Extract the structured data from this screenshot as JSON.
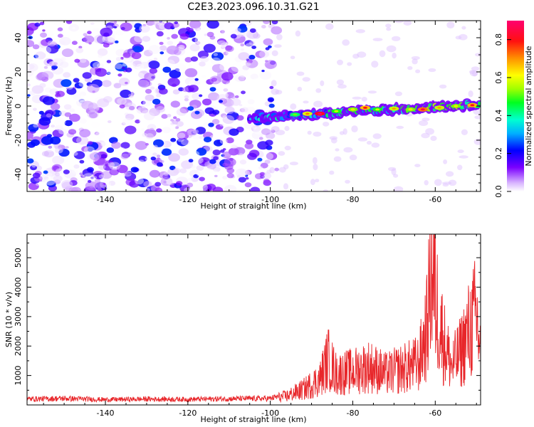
{
  "title": "C2E3.2023.096.10.31.G21",
  "chart_data": [
    {
      "type": "heatmap",
      "xlabel": "Height of straight line (km)",
      "ylabel": "Frequency (Hz)",
      "xlim": [
        -159,
        -49
      ],
      "ylim": [
        -50,
        50
      ],
      "xticks": [
        "-140",
        "-120",
        "-100",
        "-80",
        "-60"
      ],
      "yticks": [
        "-40",
        "-20",
        "0",
        "20",
        "40"
      ],
      "colorbar": {
        "label": "Normalized spectral amplitude",
        "range": [
          0,
          0.9
        ],
        "ticks": [
          "0.0",
          "0.2",
          "0.4",
          "0.6",
          "0.8"
        ]
      },
      "trace": {
        "x_start": -105,
        "x_end": -49,
        "freq_start": -7,
        "freq_end": 1,
        "amplitude_peak": 0.9
      },
      "noise_region": {
        "x_start": -159,
        "x_end": -100,
        "amplitude_max": 0.25
      }
    },
    {
      "type": "line",
      "xlabel": "Height of straight line (km)",
      "ylabel": "SNR (10 * v/v)",
      "xlim": [
        -159,
        -49
      ],
      "ylim": [
        0,
        5800
      ],
      "xticks": [
        "-140",
        "-120",
        "-100",
        "-80",
        "-60"
      ],
      "yticks": [
        "1000",
        "2000",
        "3000",
        "4000",
        "5000"
      ],
      "color": "#e8262a",
      "series": [
        {
          "x": [
            -159,
            -150,
            -140,
            -130,
            -120,
            -110,
            -100,
            -96,
            -92,
            -88,
            -86,
            -84,
            -80,
            -76,
            -72,
            -68,
            -64,
            -62,
            -61,
            -60,
            -58,
            -56,
            -54,
            -52,
            -50,
            -49
          ],
          "values": [
            200,
            220,
            180,
            200,
            190,
            210,
            220,
            350,
            600,
            1000,
            1800,
            1200,
            1300,
            1500,
            1200,
            1400,
            1600,
            3000,
            5500,
            4200,
            2500,
            1500,
            2000,
            2800,
            3500,
            2000
          ]
        }
      ]
    }
  ]
}
